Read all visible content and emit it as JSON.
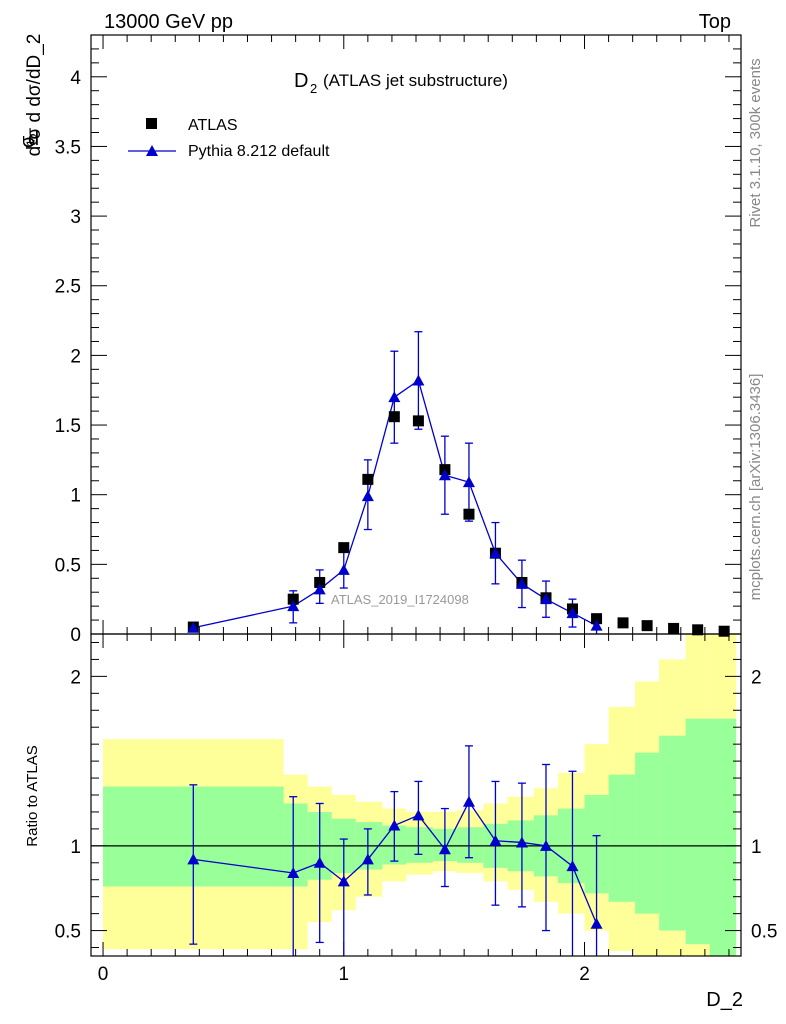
{
  "header": {
    "energy": "13000 GeV pp",
    "process": "Top"
  },
  "side_labels": {
    "rivet": "Rivet 3.1.10,  300k events",
    "mcplots": "mcplots.cern.ch [arXiv:1306.3436]"
  },
  "colors": {
    "mc": "#0000cc",
    "data": "#000000",
    "band_inner": "#99ff99",
    "band_outer": "#ffff99"
  },
  "chart_data": {
    "type": "scatter",
    "title_main": "D",
    "title_sub": "2",
    "title_rest": "(ATLAS jet substructure)",
    "xlabel": "D_2",
    "ylabel_main": "d¹σ d dσ/dD_2",
    "ylabel_ratio": "Ratio to ATLAS",
    "watermark": "ATLAS_2019_I1724098",
    "xlim": [
      -0.05,
      2.65
    ],
    "ylim_main": [
      0,
      4.3
    ],
    "ylim_ratio": [
      0.35,
      2.25
    ],
    "x_ticks": [
      0,
      1,
      2
    ],
    "y_ticks_main": [
      0,
      0.5,
      1,
      1.5,
      2,
      2.5,
      3,
      3.5,
      4
    ],
    "y_tick_labels_main": [
      "0",
      "0.5",
      "1",
      "1.5",
      "2",
      "2.5",
      "3",
      "3.5",
      "4"
    ],
    "y_ticks_ratio": [
      0.5,
      1,
      2
    ],
    "y_tick_labels_ratio": [
      "0.5",
      "1",
      "2"
    ],
    "legend": {
      "data_label": "ATLAS",
      "mc_label": "Pythia 8.212 default"
    },
    "atlas": {
      "x": [
        0.375,
        0.79,
        0.9,
        1.0,
        1.1,
        1.21,
        1.31,
        1.42,
        1.52,
        1.63,
        1.74,
        1.84,
        1.95,
        2.05,
        2.16,
        2.26,
        2.37,
        2.47,
        2.58
      ],
      "y": [
        0.05,
        0.25,
        0.37,
        0.62,
        1.11,
        1.56,
        1.53,
        1.18,
        0.86,
        0.58,
        0.37,
        0.26,
        0.18,
        0.11,
        0.08,
        0.06,
        0.04,
        0.03,
        0.02
      ]
    },
    "pythia": {
      "x": [
        0.375,
        0.79,
        0.9,
        1.0,
        1.1,
        1.21,
        1.31,
        1.42,
        1.52,
        1.63,
        1.74,
        1.84,
        1.95,
        2.05
      ],
      "y": [
        0.045,
        0.2,
        0.32,
        0.46,
        0.99,
        1.7,
        1.82,
        1.14,
        1.09,
        0.58,
        0.36,
        0.25,
        0.15,
        0.06
      ],
      "err_lo": [
        0.02,
        0.12,
        0.1,
        0.13,
        0.24,
        0.33,
        0.35,
        0.28,
        0.28,
        0.22,
        0.17,
        0.13,
        0.1,
        0.06
      ],
      "err_hi": [
        0.02,
        0.11,
        0.14,
        0.15,
        0.26,
        0.33,
        0.35,
        0.28,
        0.28,
        0.22,
        0.17,
        0.13,
        0.1,
        0.06
      ]
    },
    "ratio": {
      "y": [
        0.92,
        0.84,
        0.9,
        0.79,
        0.92,
        1.12,
        1.18,
        0.98,
        1.26,
        1.03,
        1.02,
        1.0,
        0.88,
        0.54
      ],
      "err_lo": [
        0.5,
        0.5,
        0.47,
        0.45,
        0.21,
        0.21,
        0.23,
        0.22,
        0.33,
        0.38,
        0.38,
        0.5,
        0.55,
        0.55
      ],
      "err_hi": [
        0.44,
        0.45,
        0.35,
        0.25,
        0.18,
        0.2,
        0.2,
        0.24,
        0.33,
        0.35,
        0.35,
        0.48,
        0.56,
        0.52
      ]
    },
    "bands": {
      "edges": [
        0.0,
        0.75,
        0.85,
        0.95,
        1.05,
        1.16,
        1.26,
        1.37,
        1.47,
        1.58,
        1.68,
        1.79,
        1.89,
        2.0,
        2.1,
        2.21,
        2.31,
        2.42,
        2.52,
        2.63
      ],
      "inner_lo": [
        0.76,
        0.76,
        0.8,
        0.84,
        0.86,
        0.89,
        0.9,
        0.91,
        0.9,
        0.87,
        0.85,
        0.82,
        0.78,
        0.72,
        0.67,
        0.6,
        0.5,
        0.42,
        0.35
      ],
      "inner_hi": [
        1.35,
        1.25,
        1.2,
        1.16,
        1.14,
        1.12,
        1.11,
        1.1,
        1.11,
        1.13,
        1.15,
        1.18,
        1.22,
        1.3,
        1.42,
        1.55,
        1.65,
        1.75,
        1.75
      ],
      "outer_lo": [
        0.39,
        0.39,
        0.55,
        0.62,
        0.7,
        0.79,
        0.83,
        0.85,
        0.84,
        0.79,
        0.74,
        0.67,
        0.6,
        0.5,
        0.38,
        0.35,
        0.35,
        0.35,
        0.35
      ],
      "outer_hi": [
        1.63,
        1.42,
        1.35,
        1.3,
        1.26,
        1.22,
        1.2,
        1.2,
        1.21,
        1.25,
        1.29,
        1.34,
        1.43,
        1.6,
        1.82,
        1.97,
        2.1,
        2.25,
        2.25
      ]
    }
  }
}
